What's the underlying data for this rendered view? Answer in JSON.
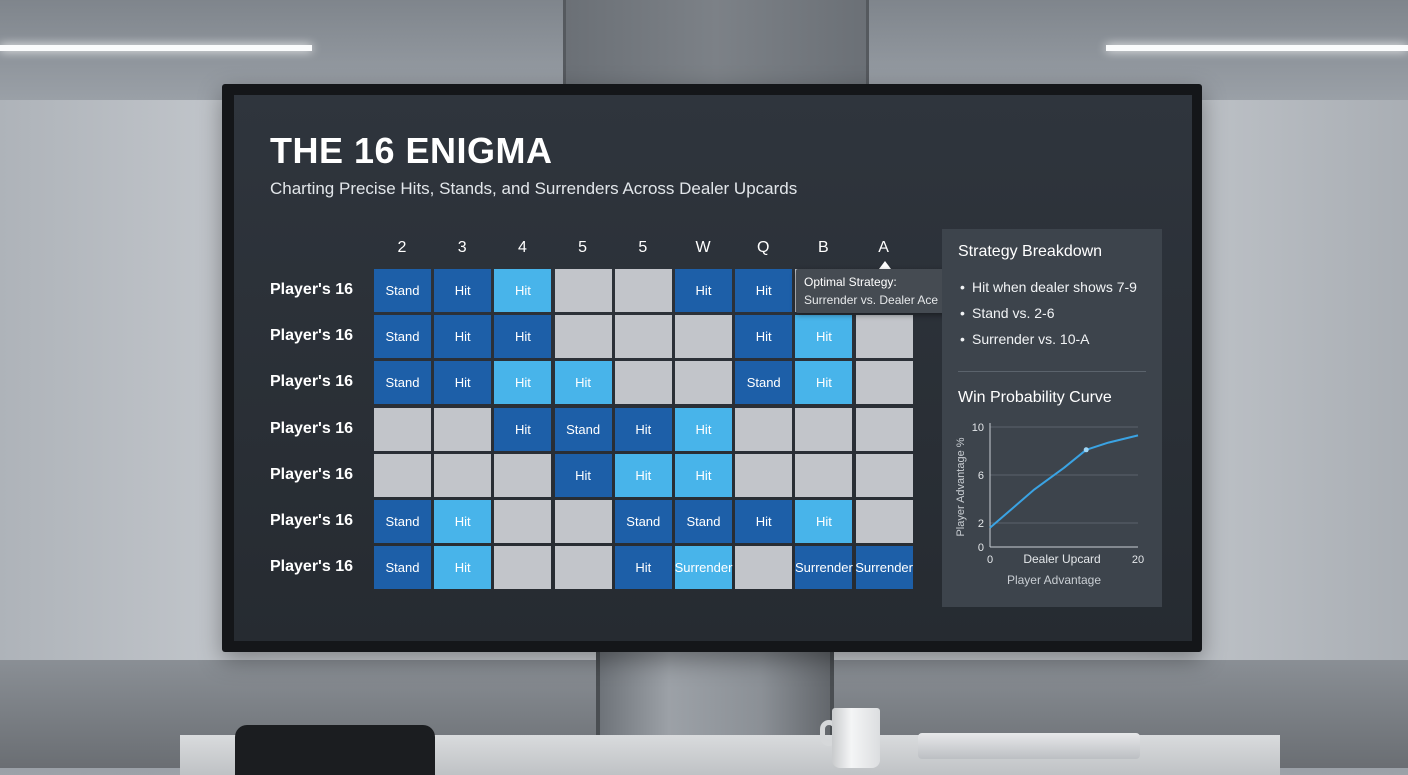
{
  "screen": {
    "title": "THE 16 ENIGMA",
    "subtitle": "Charting Precise Hits, Stands, and Surrenders Across Dealer Upcards"
  },
  "grid": {
    "columns": [
      "2",
      "3",
      "4",
      "5",
      "5",
      "W",
      "Q",
      "B",
      "A"
    ],
    "rows": [
      {
        "label": "Player's 16",
        "cells": [
          {
            "text": "Stand",
            "kind": "dark"
          },
          {
            "text": "Hit",
            "kind": "dark"
          },
          {
            "text": "Hit",
            "kind": "light"
          },
          {
            "text": "",
            "kind": "grey"
          },
          {
            "text": "",
            "kind": "grey"
          },
          {
            "text": "Hit",
            "kind": "dark"
          },
          {
            "text": "Hit",
            "kind": "dark"
          },
          {
            "text": "",
            "kind": "grey"
          },
          {
            "text": "",
            "kind": "grey"
          }
        ]
      },
      {
        "label": "Player's 16",
        "cells": [
          {
            "text": "Stand",
            "kind": "dark"
          },
          {
            "text": "Hit",
            "kind": "dark"
          },
          {
            "text": "Hit",
            "kind": "dark"
          },
          {
            "text": "",
            "kind": "grey"
          },
          {
            "text": "",
            "kind": "grey"
          },
          {
            "text": "",
            "kind": "grey"
          },
          {
            "text": "Hit",
            "kind": "dark"
          },
          {
            "text": "Hit",
            "kind": "light"
          },
          {
            "text": "",
            "kind": "grey"
          }
        ]
      },
      {
        "label": "Player's 16",
        "cells": [
          {
            "text": "Stand",
            "kind": "dark"
          },
          {
            "text": "Hit",
            "kind": "dark"
          },
          {
            "text": "Hit",
            "kind": "light"
          },
          {
            "text": "Hit",
            "kind": "light"
          },
          {
            "text": "",
            "kind": "grey"
          },
          {
            "text": "",
            "kind": "grey"
          },
          {
            "text": "Stand",
            "kind": "dark"
          },
          {
            "text": "Hit",
            "kind": "light"
          },
          {
            "text": "",
            "kind": "grey"
          }
        ]
      },
      {
        "label": "Player's 16",
        "cells": [
          {
            "text": "",
            "kind": "grey"
          },
          {
            "text": "",
            "kind": "grey"
          },
          {
            "text": "Hit",
            "kind": "dark"
          },
          {
            "text": "Stand",
            "kind": "dark"
          },
          {
            "text": "Hit",
            "kind": "dark"
          },
          {
            "text": "Hit",
            "kind": "light"
          },
          {
            "text": "",
            "kind": "grey"
          },
          {
            "text": "",
            "kind": "grey"
          },
          {
            "text": "",
            "kind": "grey"
          }
        ]
      },
      {
        "label": "Player's 16",
        "cells": [
          {
            "text": "",
            "kind": "grey"
          },
          {
            "text": "",
            "kind": "grey"
          },
          {
            "text": "",
            "kind": "grey"
          },
          {
            "text": "Hit",
            "kind": "dark"
          },
          {
            "text": "Hit",
            "kind": "light"
          },
          {
            "text": "Hit",
            "kind": "light"
          },
          {
            "text": "",
            "kind": "grey"
          },
          {
            "text": "",
            "kind": "grey"
          },
          {
            "text": "",
            "kind": "grey"
          }
        ]
      },
      {
        "label": "Player's 16",
        "cells": [
          {
            "text": "Stand",
            "kind": "dark"
          },
          {
            "text": "Hit",
            "kind": "light"
          },
          {
            "text": "",
            "kind": "grey"
          },
          {
            "text": "",
            "kind": "grey"
          },
          {
            "text": "Stand",
            "kind": "dark"
          },
          {
            "text": "Stand",
            "kind": "dark"
          },
          {
            "text": "Hit",
            "kind": "dark"
          },
          {
            "text": "Hit",
            "kind": "light"
          },
          {
            "text": "",
            "kind": "grey"
          }
        ]
      },
      {
        "label": "Player's 16",
        "cells": [
          {
            "text": "Stand",
            "kind": "dark"
          },
          {
            "text": "Hit",
            "kind": "light"
          },
          {
            "text": "",
            "kind": "grey"
          },
          {
            "text": "",
            "kind": "grey"
          },
          {
            "text": "Hit",
            "kind": "dark"
          },
          {
            "text": "Surrender",
            "kind": "light"
          },
          {
            "text": "",
            "kind": "grey"
          },
          {
            "text": "Surrender",
            "kind": "dark"
          },
          {
            "text": "Surrender",
            "kind": "dark"
          }
        ]
      }
    ]
  },
  "tooltip": {
    "title": "Optimal Strategy:",
    "text": "Surrender vs. Dealer Ace"
  },
  "panel": {
    "heading": "Strategy Breakdown",
    "bullets": [
      "Hit when dealer shows 7-9",
      "Stand vs. 2-6",
      "Surrender vs. 10-A"
    ],
    "chart_heading": "Win Probability Curve"
  },
  "chart_data": {
    "type": "line",
    "title": "Win Probability Curve",
    "xlabel": "Dealer Upcard",
    "ylabel": "Player Advantage %",
    "footer": "Player Advantage",
    "xlim": [
      0,
      20
    ],
    "ylim": [
      0,
      10
    ],
    "xticks": [
      "0",
      "20"
    ],
    "yticks": [
      "0",
      "2",
      "6",
      "10"
    ],
    "series": [
      {
        "name": "Player Advantage",
        "x": [
          0,
          3,
          6,
          10,
          13,
          16,
          20
        ],
        "y": [
          1.6,
          3.2,
          4.8,
          6.6,
          8.1,
          8.7,
          9.3
        ]
      }
    ],
    "highlight_point": {
      "x": 13,
      "y": 8.1
    },
    "colors": {
      "line": "#3aa3e3",
      "grid": "#5a626b",
      "axis": "#c9ced3",
      "text": "#e4e7ea"
    }
  }
}
